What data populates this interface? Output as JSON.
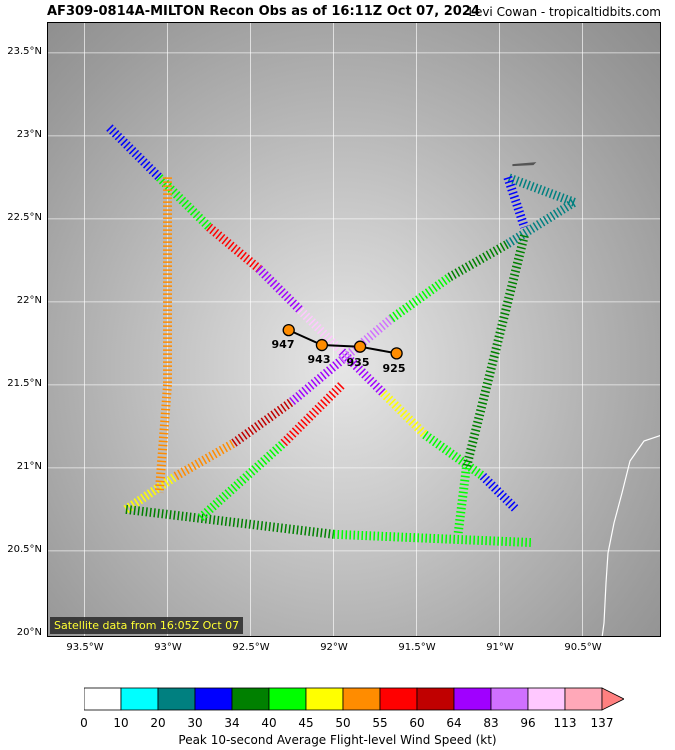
{
  "title": "AF309-0814A-MILTON Recon Obs as of 16:11Z Oct 07, 2024",
  "credit": "Levi Cowan - tropicaltidbits.com",
  "satellite_note": "Satellite data from 16:05Z Oct 07",
  "lat_labels": [
    "23.5°N",
    "23°N",
    "22.5°N",
    "22°N",
    "21.5°N",
    "21°N",
    "20.5°N",
    "20°N"
  ],
  "lon_labels": [
    "93.5°W",
    "93°W",
    "92.5°W",
    "92°W",
    "91.5°W",
    "91°W",
    "90.5°W"
  ],
  "pressure_obs": [
    {
      "label": "947",
      "lon": -92.27,
      "lat": 21.83
    },
    {
      "label": "943",
      "lon": -92.07,
      "lat": 21.74
    },
    {
      "label": "935",
      "lon": -91.84,
      "lat": 21.73
    },
    {
      "label": "925",
      "lon": -91.62,
      "lat": 21.69
    }
  ],
  "colorbar": {
    "title": "Peak 10-second Average Flight-level Wind Speed (kt)",
    "ticks": [
      "0",
      "10",
      "20",
      "30",
      "34",
      "40",
      "45",
      "50",
      "55",
      "60",
      "64",
      "83",
      "96",
      "113",
      "137"
    ],
    "colors": [
      "#ffffff",
      "#00ffff",
      "#008080",
      "#0000ff",
      "#008000",
      "#00ff00",
      "#ffff00",
      "#ff8c00",
      "#ff0000",
      "#c00000",
      "#a000ff",
      "#d070ff",
      "#ffc8ff",
      "#ffa8b8"
    ]
  },
  "colors": {
    "track_line": "#000000",
    "pressure_marker": "#ff8c00",
    "satellite_note_text": "#ffff33"
  }
}
